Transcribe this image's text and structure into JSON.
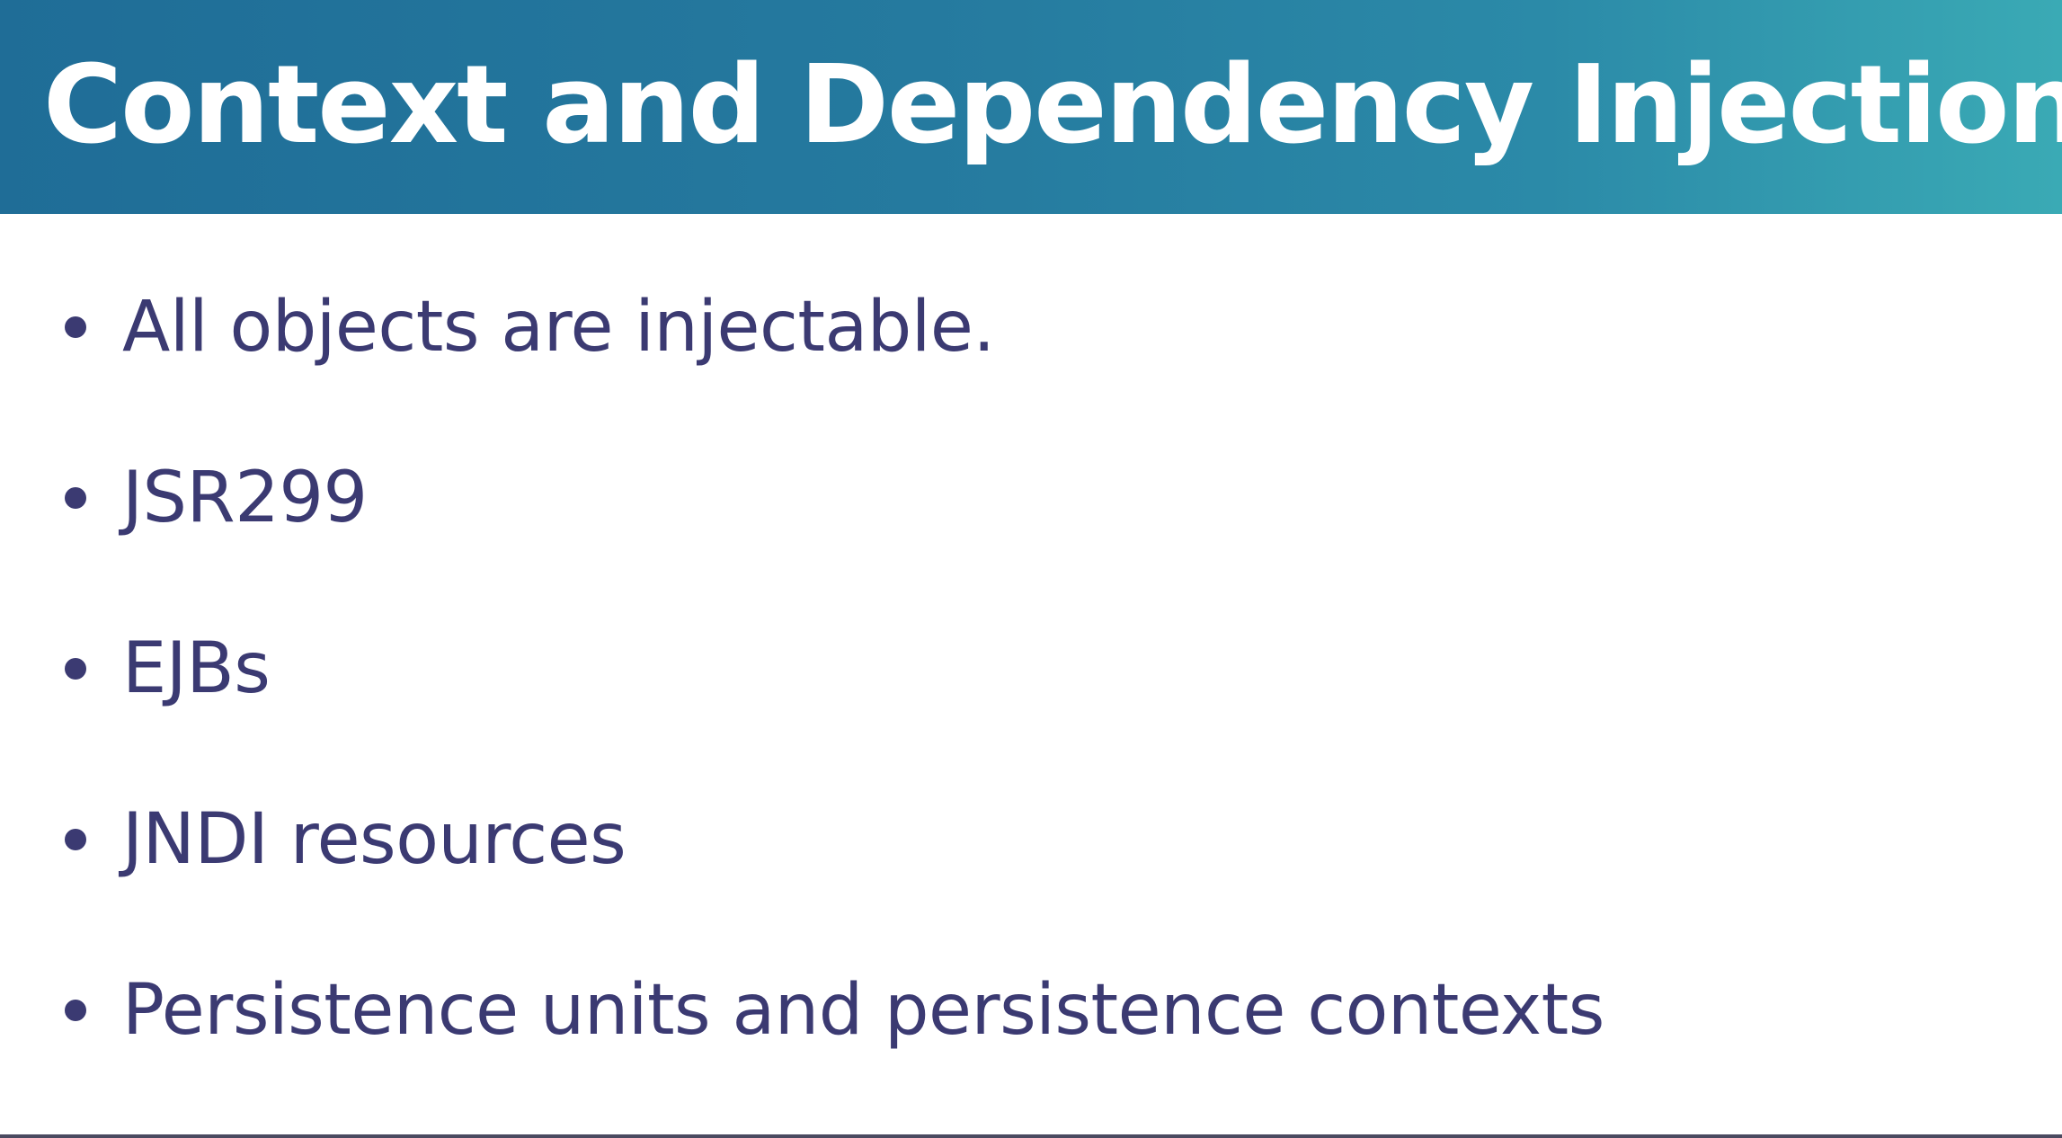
{
  "slide": {
    "title": "Context and Dependency Injection",
    "bullets": [
      "All objects are injectable.",
      "JSR299",
      "EJBs",
      "JNDI resources",
      "Persistence units and persistence contexts"
    ]
  },
  "colors": {
    "title_bar_start": "#1f6d97",
    "title_bar_end": "#3aaab5",
    "title_text": "#ffffff",
    "body_text": "#3b3a72",
    "background": "#ffffff"
  }
}
